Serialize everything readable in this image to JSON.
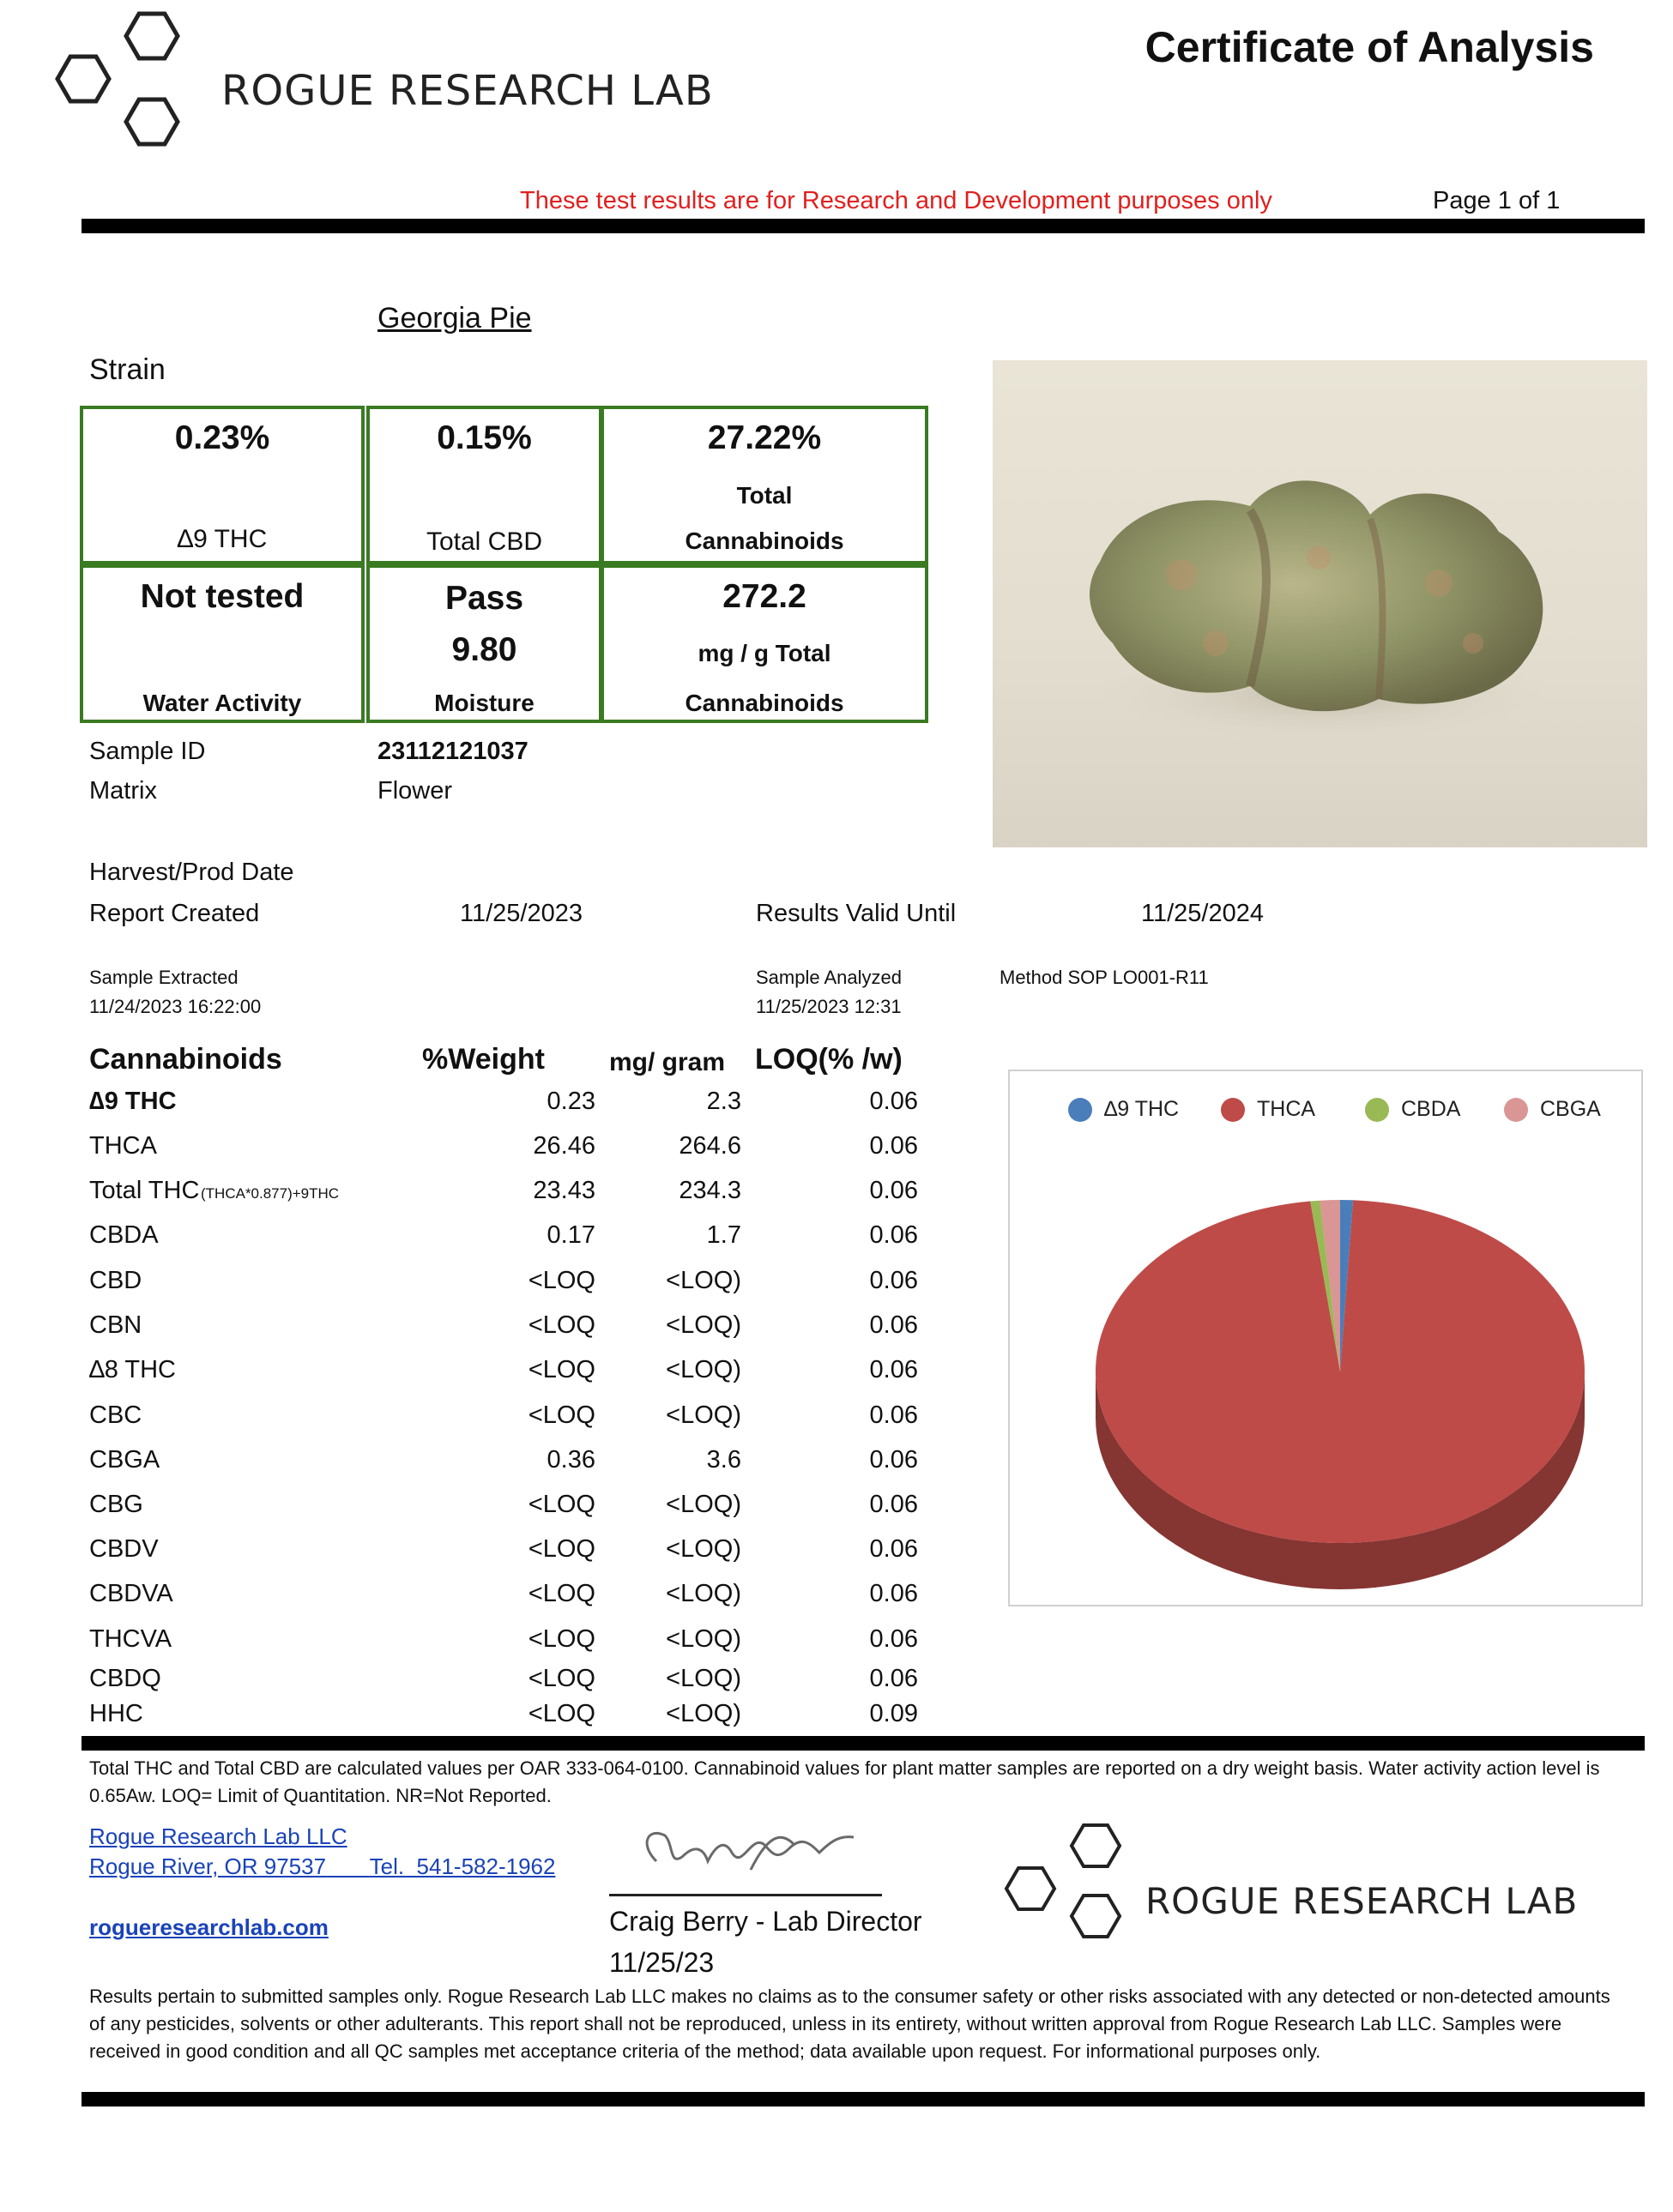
{
  "header": {
    "lab_name": "ROGUE RESEARCH LAB",
    "title": "Certificate of Analysis",
    "disclaimer": "These test results are for Research and Development purposes only",
    "page": "Page 1 of 1"
  },
  "sample": {
    "name": "Georgia Pie",
    "strain_label": "Strain"
  },
  "summary": {
    "d9thc_value": "0.23%",
    "d9thc_label": "∆9 THC",
    "cbd_value": "0.15%",
    "cbd_label": "Total CBD",
    "total_value": "27.22%",
    "total_label1": "Total",
    "total_label2": "Cannabinoids",
    "water_value": "Not tested",
    "water_label": "Water Activity",
    "moisture_status": "Pass",
    "moisture_value": "9.80",
    "moisture_label": "Moisture",
    "mg_value": "272.2",
    "mg_label1": "mg / g Total",
    "mg_label2": "Cannabinoids"
  },
  "details": {
    "sample_id_label": "Sample ID",
    "sample_id": "23112121037",
    "matrix_label": "Matrix",
    "matrix": "Flower",
    "harvest_label": "Harvest/Prod Date",
    "report_created_label": "Report Created",
    "report_created": "11/25/2023",
    "valid_until_label": "Results Valid Until",
    "valid_until": "11/25/2024",
    "extracted_label": "Sample Extracted",
    "extracted": "11/24/2023 16:22:00",
    "analyzed_label": "Sample Analyzed",
    "analyzed": "11/25/2023 12:31",
    "method": "Method SOP LO001-R11"
  },
  "table": {
    "headers": [
      "Cannabinoids",
      "%Weight",
      "mg/ gram",
      "LOQ(% /w)"
    ],
    "rows": [
      {
        "name": "∆9 THC",
        "sub": "",
        "weight": "0.23",
        "mg": "2.3",
        "loq": "0.06",
        "bold": true
      },
      {
        "name": "THCA",
        "sub": "",
        "weight": "26.46",
        "mg": "264.6",
        "loq": "0.06"
      },
      {
        "name": "Total THC",
        "sub": "(THCA*0.877)+9THC",
        "weight": "23.43",
        "mg": "234.3",
        "loq": "0.06"
      },
      {
        "name": "CBDA",
        "sub": "",
        "weight": "0.17",
        "mg": "1.7",
        "loq": "0.06"
      },
      {
        "name": "CBD",
        "sub": "",
        "weight": "<LOQ",
        "mg": "<LOQ)",
        "loq": "0.06"
      },
      {
        "name": "CBN",
        "sub": "",
        "weight": "<LOQ",
        "mg": "<LOQ)",
        "loq": "0.06"
      },
      {
        "name": "∆8 THC",
        "sub": "",
        "weight": "<LOQ",
        "mg": "<LOQ)",
        "loq": "0.06"
      },
      {
        "name": "CBC",
        "sub": "",
        "weight": "<LOQ",
        "mg": "<LOQ)",
        "loq": "0.06"
      },
      {
        "name": "CBGA",
        "sub": "",
        "weight": "0.36",
        "mg": "3.6",
        "loq": "0.06"
      },
      {
        "name": "CBG",
        "sub": "",
        "weight": "<LOQ",
        "mg": "<LOQ)",
        "loq": "0.06"
      },
      {
        "name": "CBDV",
        "sub": "",
        "weight": "<LOQ",
        "mg": "<LOQ)",
        "loq": "0.06"
      },
      {
        "name": "CBDVA",
        "sub": "",
        "weight": "<LOQ",
        "mg": "<LOQ)",
        "loq": "0.06"
      },
      {
        "name": "THCVA",
        "sub": "",
        "weight": "<LOQ",
        "mg": "<LOQ)",
        "loq": "0.06"
      },
      {
        "name": "CBDQ",
        "sub": "",
        "weight": "<LOQ",
        "mg": "<LOQ)",
        "loq": "0.06"
      },
      {
        "name": "HHC",
        "sub": "",
        "weight": "<LOQ",
        "mg": "<LOQ)",
        "loq": "0.09"
      }
    ]
  },
  "chart_data": {
    "type": "pie",
    "title": "",
    "categories": [
      "∆9 THC",
      "THCA",
      "CBDA",
      "CBGA"
    ],
    "values": [
      0.23,
      26.46,
      0.17,
      0.36
    ],
    "colors": [
      "#4a7ebb",
      "#be4b48",
      "#98b954",
      "#d99694"
    ],
    "legend": "top"
  },
  "footer": {
    "note": "Total THC and Total CBD are calculated values per OAR 333-064-0100.  Cannabinoid values for plant matter samples are reported on a dry weight basis. Water activity action level is 0.65Aw. LOQ= Limit of Quantitation. NR=Not Reported.",
    "lab_llc": "Rogue Research Lab LLC",
    "address": "Rogue River, OR 97537",
    "tel": "Tel.  541-582-1962",
    "website": "rogueresearchlab.com",
    "signer": "Craig Berry - Lab Director",
    "sign_date": "11/25/23",
    "lab_name2": "ROGUE RESEARCH LAB",
    "disclaimer_long": "Results pertain to submitted samples only. Rogue Research Lab LLC makes no claims as to the consumer safety or other risks associated with any detected or non-detected amounts of any pesticides, solvents or other adulterants. This report shall not be reproduced, unless in its entirety, without written approval from Rogue Research Lab LLC. Samples were received in good condition and all QC samples met acceptance criteria of the method; data available upon request. For informational purposes only."
  }
}
